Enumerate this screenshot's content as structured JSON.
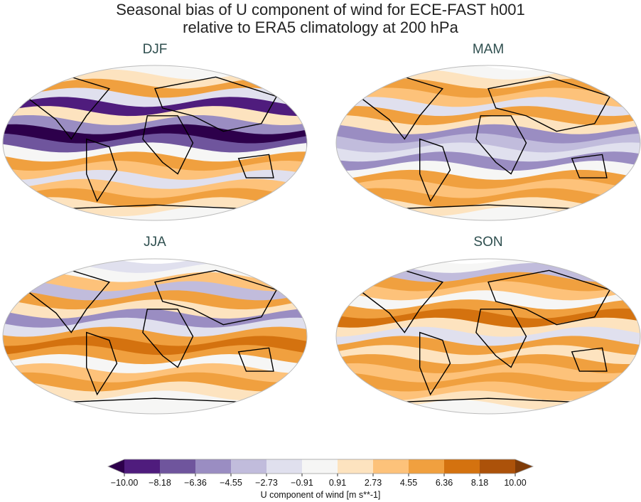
{
  "title": [
    "Seasonal bias of U component of wind for ECE-FAST h001",
    "relative to ERA5 climatology at 200 hPa"
  ],
  "panels": [
    {
      "label": "DJF"
    },
    {
      "label": "MAM"
    },
    {
      "label": "JJA"
    },
    {
      "label": "SON"
    }
  ],
  "colorbar": {
    "label": "U component of wind [m s**-1]",
    "ticks": [
      "−10.00",
      "−8.18",
      "−6.36",
      "−4.55",
      "−2.73",
      "−0.91",
      "0.91",
      "2.73",
      "4.55",
      "6.36",
      "8.18",
      "10.00"
    ],
    "colors": [
      "#4f1c7d",
      "#6f559d",
      "#9a8dc2",
      "#c1bcdc",
      "#e0e0ee",
      "#f6f6f5",
      "#fde3bf",
      "#fdc27a",
      "#f0a03f",
      "#d4720f",
      "#ac520a"
    ],
    "under_color": "#2d004b",
    "over_color": "#7f3b08",
    "extend": "both",
    "colormap": "PuOr_r"
  }
}
